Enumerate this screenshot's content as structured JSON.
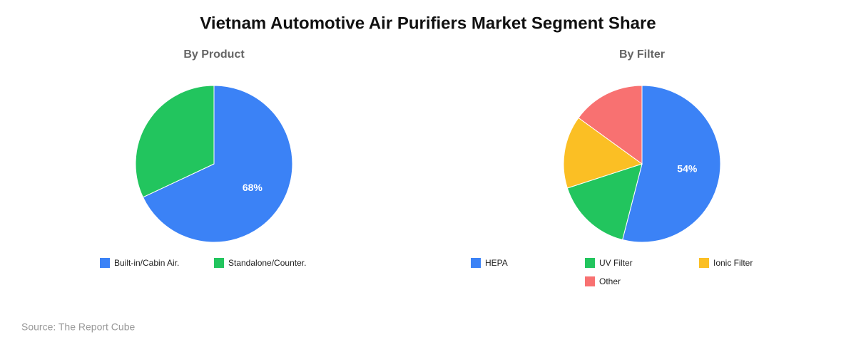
{
  "title": "Vietnam Automotive Air Purifiers Market Segment Share",
  "source": "Source: The Report Cube",
  "chart_data": [
    {
      "type": "pie",
      "title": "By Product",
      "categories": [
        "Built-in/Cabin Air.",
        "Standalone/Counter."
      ],
      "values": [
        68,
        32
      ],
      "value_labels": [
        "68%",
        null
      ],
      "colors": [
        "#3b82f6",
        "#22c55e"
      ]
    },
    {
      "type": "pie",
      "title": "By Filter",
      "categories": [
        "HEPA",
        "UV Filter",
        "Ionic Filter",
        "Other"
      ],
      "values": [
        54,
        16,
        15,
        15
      ],
      "value_labels": [
        "54%",
        null,
        null,
        null
      ],
      "colors": [
        "#3b82f6",
        "#22c55e",
        "#fbbf24",
        "#f87171"
      ]
    }
  ]
}
